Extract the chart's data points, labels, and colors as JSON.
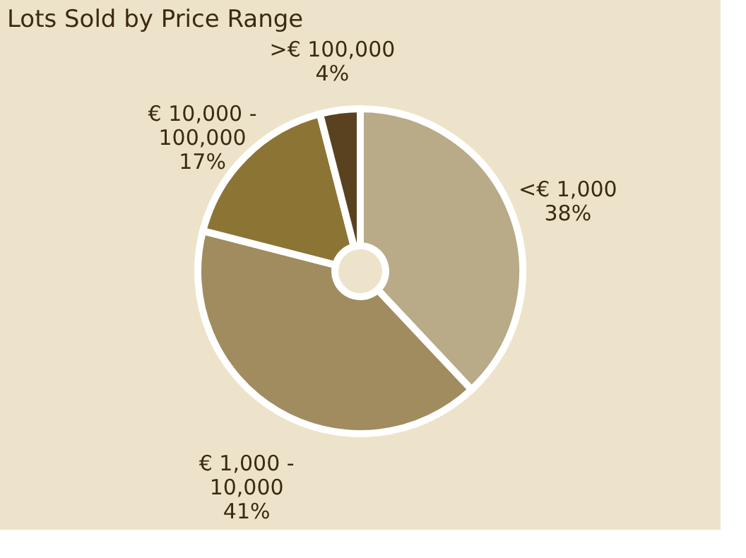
{
  "chart_data": {
    "type": "donut",
    "title": "Lots Sold by Price Range",
    "categories": [
      "<€ 1,000",
      "€ 1,000 - 10,000",
      "€ 10,000 - 100,000",
      ">€ 100,000"
    ],
    "values": [
      38,
      41,
      17,
      4
    ],
    "value_labels": [
      "38%",
      "41%",
      "17%",
      "4%"
    ],
    "colors": [
      "#b9aa88",
      "#a08c5f",
      "#8c7434",
      "#5a4220"
    ]
  }
}
